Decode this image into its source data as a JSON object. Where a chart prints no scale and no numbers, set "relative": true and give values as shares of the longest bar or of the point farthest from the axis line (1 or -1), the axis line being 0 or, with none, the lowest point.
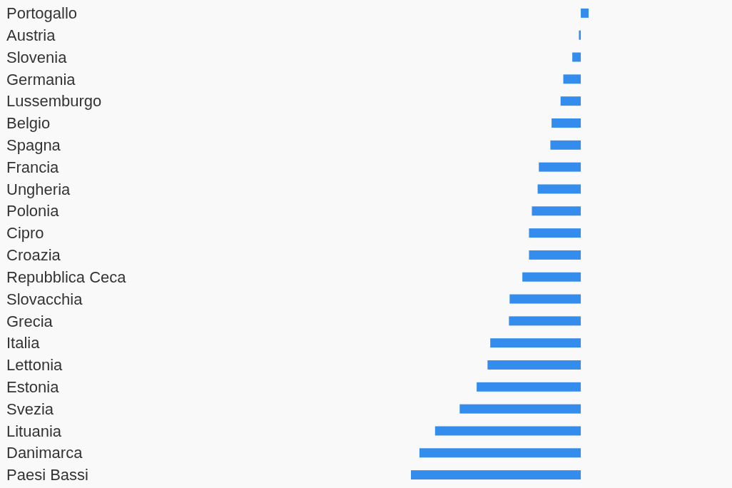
{
  "chart_data": {
    "type": "bar",
    "orientation": "horizontal",
    "relative": true,
    "categories": [
      "Portogallo",
      "Austria",
      "Slovenia",
      "Germania",
      "Lussemburgo",
      "Belgio",
      "Spagna",
      "Francia",
      "Ungheria",
      "Polonia",
      "Cipro",
      "Croazia",
      "Repubblica Ceca",
      "Slovacchia",
      "Grecia",
      "Italia",
      "Lettonia",
      "Estonia",
      "Svezia",
      "Lituania",
      "Danimarca",
      "Paesi Bassi"
    ],
    "values": [
      0.046,
      -0.011,
      -0.05,
      -0.103,
      -0.119,
      -0.172,
      -0.179,
      -0.247,
      -0.254,
      -0.288,
      -0.305,
      -0.305,
      -0.344,
      -0.419,
      -0.423,
      -0.533,
      -0.549,
      -0.613,
      -0.713,
      -0.858,
      -0.95,
      -1
    ],
    "color": "#348ced"
  }
}
